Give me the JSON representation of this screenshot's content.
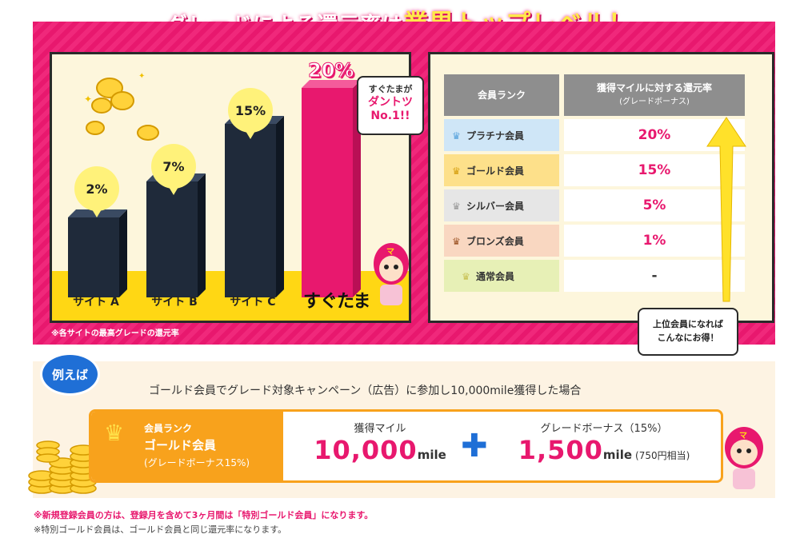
{
  "headline": {
    "part1": "グレードによる還元率は",
    "part2": "業界トップレベル！"
  },
  "chart_data": {
    "type": "bar",
    "categories": [
      "サイトA",
      "サイトB",
      "サイトC",
      "すぐたま"
    ],
    "values": [
      2,
      7,
      15,
      20
    ],
    "value_labels": [
      "2%",
      "7%",
      "15%",
      "20%"
    ],
    "colors": [
      "#1f2a3a",
      "#1f2a3a",
      "#1f2a3a",
      "#e8186e"
    ],
    "title": "",
    "xlabel": "",
    "ylabel": "",
    "ylim": [
      0,
      20
    ],
    "grid": false
  },
  "chart_labels": {
    "site_a": "サイト A",
    "site_b": "サイト B",
    "site_c": "サイト C",
    "brand": "すぐたま"
  },
  "callout": {
    "line1": "すぐたまが",
    "line2": "ダントツ",
    "line3": "No.1!!"
  },
  "chart_footnote": "※各サイトの最高グレードの還元率",
  "rank_table": {
    "header_rank": "会員ランク",
    "header_rate": "獲得マイルに対する還元率",
    "header_rate_sub": "(グレードボーナス)",
    "rows": [
      {
        "name": "プラチナ会員",
        "rate": "20%"
      },
      {
        "name": "ゴールド会員",
        "rate": "15%"
      },
      {
        "name": "シルバー会員",
        "rate": "5%"
      },
      {
        "name": "ブロンズ会員",
        "rate": "1%"
      },
      {
        "name": "通常会員",
        "rate": "-"
      }
    ]
  },
  "tip": {
    "line1": "上位会員になれば",
    "line2": "こんなにお得！"
  },
  "example": {
    "badge": "例えば",
    "description": "ゴールド会員でグレード対象キャンペーン（広告）に参加し10,000mile獲得した場合",
    "rank_label": "会員ランク",
    "rank_value": "ゴールド会員",
    "rank_bonus": "(グレードボーナス15%)",
    "miles_caption": "獲得マイル",
    "miles_value": "10,000",
    "miles_unit": "mile",
    "bonus_caption": "グレードボーナス（15%）",
    "bonus_value": "1,500",
    "bonus_unit": "mile",
    "bonus_note": "(750円相当)"
  },
  "notes": {
    "red": "※新規登録会員の方は、登録月を含めて3ヶ月間は「特別ゴールド会員」になります。",
    "gray": "※特別ゴールド会員は、ゴールド会員と同じ還元率になります。"
  },
  "colors": {
    "pink": "#e8186e",
    "yellow": "#ffd714",
    "navy": "#1f2a3a",
    "orange": "#f8a21c",
    "blue": "#1f6fd6"
  }
}
